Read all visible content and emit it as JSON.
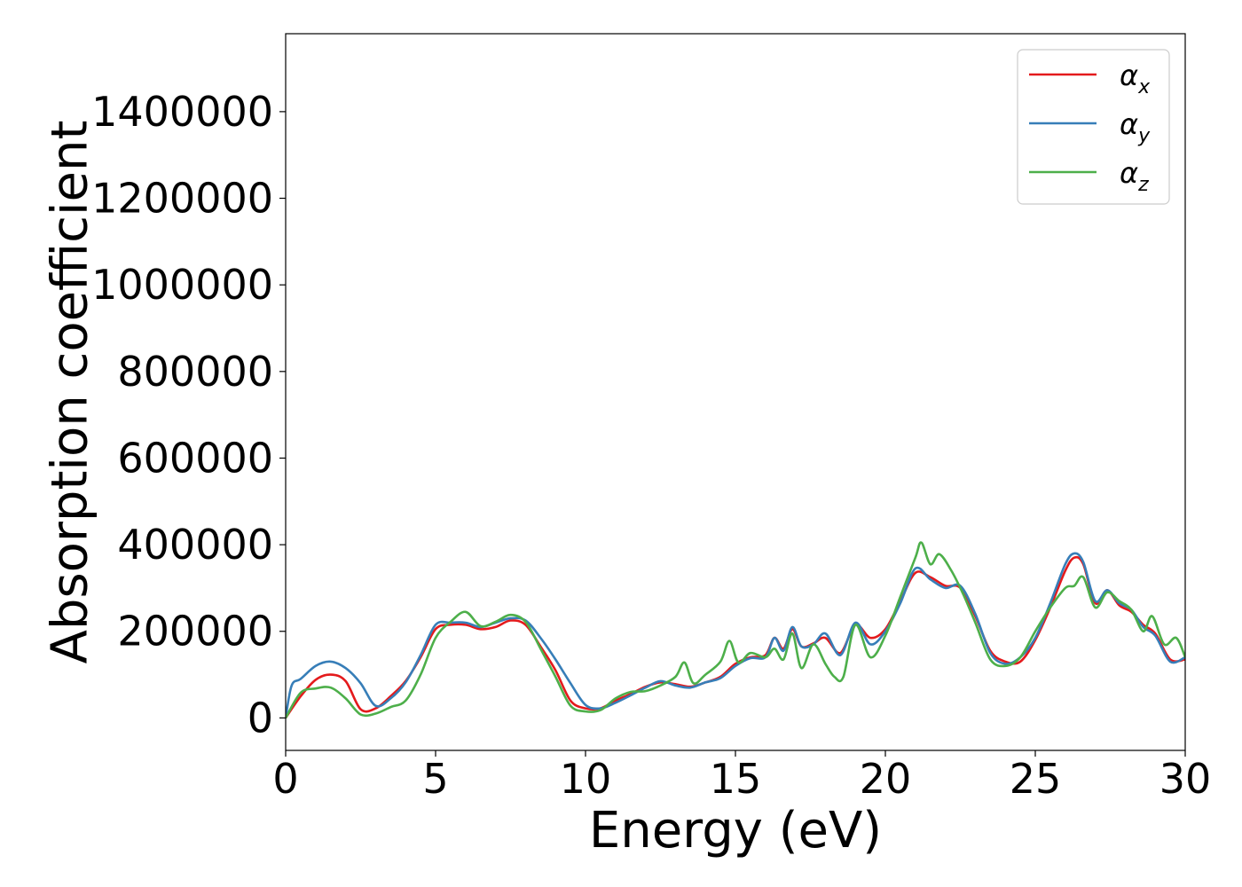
{
  "chart_data": {
    "type": "line",
    "xlabel": "Energy (eV)",
    "ylabel": "Absorption coefficient",
    "xlim": [
      0,
      30
    ],
    "ylim": [
      -75000,
      1580000
    ],
    "x_ticks": [
      "0",
      "5",
      "10",
      "15",
      "20",
      "25",
      "30"
    ],
    "y_ticks": [
      "0",
      "200000",
      "400000",
      "600000",
      "800000",
      "1000000",
      "1200000",
      "1400000"
    ],
    "grid": false,
    "legend_position": "top-right",
    "series": [
      {
        "name": "α_x",
        "legend_base": "α",
        "legend_sub": "x",
        "color": "#e41a1c",
        "points": [
          [
            0,
            0
          ],
          [
            0.5,
            50000
          ],
          [
            1.0,
            88000
          ],
          [
            1.5,
            100000
          ],
          [
            2.0,
            85000
          ],
          [
            2.5,
            20000
          ],
          [
            3.0,
            22000
          ],
          [
            3.5,
            50000
          ],
          [
            4.0,
            85000
          ],
          [
            4.5,
            140000
          ],
          [
            5.0,
            205000
          ],
          [
            5.5,
            215000
          ],
          [
            6.0,
            215000
          ],
          [
            6.5,
            205000
          ],
          [
            7.0,
            210000
          ],
          [
            7.5,
            225000
          ],
          [
            8.0,
            215000
          ],
          [
            8.5,
            165000
          ],
          [
            9.0,
            110000
          ],
          [
            9.5,
            40000
          ],
          [
            10.0,
            22000
          ],
          [
            10.5,
            22000
          ],
          [
            11.0,
            40000
          ],
          [
            11.5,
            55000
          ],
          [
            12.0,
            72000
          ],
          [
            12.5,
            82000
          ],
          [
            13.0,
            78000
          ],
          [
            13.5,
            72000
          ],
          [
            14.0,
            82000
          ],
          [
            14.5,
            95000
          ],
          [
            15.0,
            125000
          ],
          [
            15.5,
            140000
          ],
          [
            16.0,
            145000
          ],
          [
            16.3,
            185000
          ],
          [
            16.6,
            160000
          ],
          [
            16.9,
            205000
          ],
          [
            17.2,
            165000
          ],
          [
            17.6,
            172000
          ],
          [
            18.0,
            185000
          ],
          [
            18.5,
            150000
          ],
          [
            19.0,
            215000
          ],
          [
            19.5,
            185000
          ],
          [
            20.0,
            205000
          ],
          [
            20.5,
            270000
          ],
          [
            21.0,
            335000
          ],
          [
            21.5,
            325000
          ],
          [
            22.0,
            305000
          ],
          [
            22.5,
            300000
          ],
          [
            23.0,
            235000
          ],
          [
            23.5,
            155000
          ],
          [
            24.0,
            130000
          ],
          [
            24.5,
            130000
          ],
          [
            25.0,
            180000
          ],
          [
            25.5,
            255000
          ],
          [
            26.0,
            340000
          ],
          [
            26.3,
            370000
          ],
          [
            26.6,
            355000
          ],
          [
            27.0,
            265000
          ],
          [
            27.4,
            295000
          ],
          [
            27.8,
            260000
          ],
          [
            28.2,
            245000
          ],
          [
            28.6,
            215000
          ],
          [
            29.0,
            195000
          ],
          [
            29.5,
            135000
          ],
          [
            30.0,
            135000
          ]
        ]
      },
      {
        "name": "α_y",
        "legend_base": "α",
        "legend_sub": "y",
        "color": "#377eb8",
        "points": [
          [
            0,
            0
          ],
          [
            0.2,
            75000
          ],
          [
            0.5,
            90000
          ],
          [
            1.0,
            120000
          ],
          [
            1.5,
            130000
          ],
          [
            2.0,
            115000
          ],
          [
            2.5,
            80000
          ],
          [
            3.0,
            28000
          ],
          [
            3.5,
            45000
          ],
          [
            4.0,
            82000
          ],
          [
            4.5,
            145000
          ],
          [
            5.0,
            215000
          ],
          [
            5.5,
            220000
          ],
          [
            6.0,
            220000
          ],
          [
            6.5,
            210000
          ],
          [
            7.0,
            220000
          ],
          [
            7.5,
            230000
          ],
          [
            8.0,
            225000
          ],
          [
            8.5,
            185000
          ],
          [
            9.0,
            135000
          ],
          [
            9.5,
            80000
          ],
          [
            10.0,
            30000
          ],
          [
            10.5,
            22000
          ],
          [
            11.0,
            35000
          ],
          [
            11.5,
            52000
          ],
          [
            12.0,
            70000
          ],
          [
            12.5,
            85000
          ],
          [
            13.0,
            75000
          ],
          [
            13.5,
            70000
          ],
          [
            14.0,
            82000
          ],
          [
            14.5,
            92000
          ],
          [
            15.0,
            120000
          ],
          [
            15.5,
            138000
          ],
          [
            16.0,
            140000
          ],
          [
            16.3,
            185000
          ],
          [
            16.6,
            155000
          ],
          [
            16.9,
            210000
          ],
          [
            17.2,
            165000
          ],
          [
            17.6,
            170000
          ],
          [
            18.0,
            195000
          ],
          [
            18.5,
            145000
          ],
          [
            19.0,
            220000
          ],
          [
            19.5,
            170000
          ],
          [
            20.0,
            200000
          ],
          [
            20.5,
            265000
          ],
          [
            21.0,
            345000
          ],
          [
            21.5,
            320000
          ],
          [
            22.0,
            300000
          ],
          [
            22.5,
            305000
          ],
          [
            23.0,
            240000
          ],
          [
            23.5,
            150000
          ],
          [
            24.0,
            125000
          ],
          [
            24.5,
            140000
          ],
          [
            25.0,
            185000
          ],
          [
            25.5,
            265000
          ],
          [
            26.0,
            355000
          ],
          [
            26.3,
            380000
          ],
          [
            26.6,
            360000
          ],
          [
            27.0,
            270000
          ],
          [
            27.4,
            295000
          ],
          [
            27.8,
            265000
          ],
          [
            28.2,
            250000
          ],
          [
            28.6,
            210000
          ],
          [
            29.0,
            190000
          ],
          [
            29.5,
            130000
          ],
          [
            30.0,
            140000
          ]
        ]
      },
      {
        "name": "α_z",
        "legend_base": "α",
        "legend_sub": "z",
        "color": "#4daf4a",
        "points": [
          [
            0,
            0
          ],
          [
            0.5,
            58000
          ],
          [
            1.0,
            68000
          ],
          [
            1.5,
            70000
          ],
          [
            2.0,
            45000
          ],
          [
            2.5,
            8000
          ],
          [
            3.0,
            10000
          ],
          [
            3.5,
            25000
          ],
          [
            4.0,
            40000
          ],
          [
            4.5,
            100000
          ],
          [
            5.0,
            185000
          ],
          [
            5.5,
            222000
          ],
          [
            6.0,
            245000
          ],
          [
            6.5,
            212000
          ],
          [
            7.0,
            222000
          ],
          [
            7.5,
            238000
          ],
          [
            8.0,
            222000
          ],
          [
            8.5,
            160000
          ],
          [
            9.0,
            95000
          ],
          [
            9.5,
            28000
          ],
          [
            10.0,
            15000
          ],
          [
            10.5,
            18000
          ],
          [
            11.0,
            45000
          ],
          [
            11.5,
            60000
          ],
          [
            12.0,
            62000
          ],
          [
            12.5,
            75000
          ],
          [
            13.0,
            95000
          ],
          [
            13.3,
            128000
          ],
          [
            13.6,
            80000
          ],
          [
            14.0,
            100000
          ],
          [
            14.5,
            130000
          ],
          [
            14.8,
            178000
          ],
          [
            15.1,
            128000
          ],
          [
            15.5,
            150000
          ],
          [
            16.0,
            140000
          ],
          [
            16.3,
            160000
          ],
          [
            16.6,
            135000
          ],
          [
            16.9,
            195000
          ],
          [
            17.2,
            115000
          ],
          [
            17.6,
            170000
          ],
          [
            18.0,
            125000
          ],
          [
            18.3,
            95000
          ],
          [
            18.6,
            95000
          ],
          [
            19.0,
            215000
          ],
          [
            19.5,
            140000
          ],
          [
            20.0,
            190000
          ],
          [
            20.5,
            280000
          ],
          [
            21.0,
            370000
          ],
          [
            21.2,
            405000
          ],
          [
            21.5,
            355000
          ],
          [
            21.8,
            378000
          ],
          [
            22.2,
            340000
          ],
          [
            22.6,
            285000
          ],
          [
            23.0,
            220000
          ],
          [
            23.5,
            135000
          ],
          [
            24.0,
            120000
          ],
          [
            24.5,
            140000
          ],
          [
            25.0,
            200000
          ],
          [
            25.5,
            255000
          ],
          [
            26.0,
            300000
          ],
          [
            26.3,
            305000
          ],
          [
            26.6,
            325000
          ],
          [
            27.0,
            255000
          ],
          [
            27.4,
            290000
          ],
          [
            27.8,
            270000
          ],
          [
            28.2,
            250000
          ],
          [
            28.6,
            200000
          ],
          [
            28.9,
            235000
          ],
          [
            29.3,
            170000
          ],
          [
            29.7,
            185000
          ],
          [
            30.0,
            140000
          ]
        ]
      }
    ]
  }
}
